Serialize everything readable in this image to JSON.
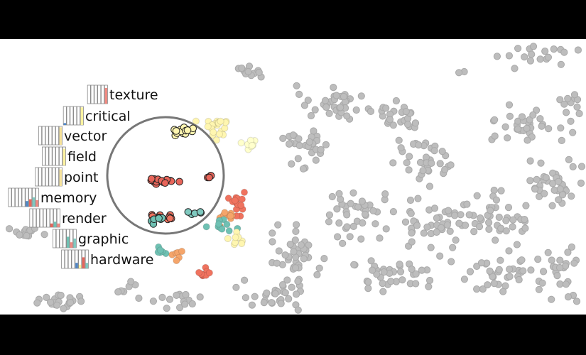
{
  "chart_data": {
    "type": "scatter",
    "title": "",
    "background_color": "#ffffff",
    "frame_color": "#000000",
    "base_point_color": "#bdbdbd",
    "lens": {
      "shape": "circle",
      "border_color": "#777777"
    },
    "categories": [
      {
        "name": "texture",
        "color": "#fff6b0"
      },
      {
        "name": "critical",
        "color": "#fde29b"
      },
      {
        "name": "vector",
        "color": "#f9d58c"
      },
      {
        "name": "field",
        "color": "#ffffcc"
      },
      {
        "name": "point",
        "color": "#e8655a"
      },
      {
        "name": "memory",
        "color": "#f0735f"
      },
      {
        "name": "render",
        "color": "#7fc9bf"
      },
      {
        "name": "graphic",
        "color": "#6fc1b3"
      },
      {
        "name": "hardware",
        "color": "#f5a56a"
      }
    ],
    "keywords": [
      {
        "label": "texture",
        "bars": [
          0.0,
          0.0,
          0.0,
          0.0,
          0.0,
          0.85
        ],
        "bar_colors": [
          "#dddddd",
          "#dddddd",
          "#dddddd",
          "#dddddd",
          "#dddddd",
          "#f08a82"
        ]
      },
      {
        "label": "critical",
        "bars": [
          0.1,
          0.0,
          0.0,
          0.0,
          0.0,
          0.95
        ],
        "bar_colors": [
          "#4f86c6",
          "#dddddd",
          "#dddddd",
          "#dddddd",
          "#dddddd",
          "#fff3a0"
        ]
      },
      {
        "label": "vector",
        "bars": [
          0.0,
          0.0,
          0.0,
          0.0,
          0.0,
          0.0,
          0.95
        ],
        "bar_colors": [
          "#dddddd",
          "#dddddd",
          "#dddddd",
          "#dddddd",
          "#dddddd",
          "#dddddd",
          "#f5e19a"
        ]
      },
      {
        "label": "field",
        "bars": [
          0.0,
          0.0,
          0.0,
          0.0,
          0.0,
          0.0,
          0.9
        ],
        "bar_colors": [
          "#dddddd",
          "#dddddd",
          "#dddddd",
          "#dddddd",
          "#dddddd",
          "#dddddd",
          "#fff3a0"
        ]
      },
      {
        "label": "point",
        "bars": [
          0.0,
          0.0,
          0.0,
          0.0,
          0.0,
          0.0,
          0.0,
          0.9
        ],
        "bar_colors": [
          "#dddddd",
          "#dddddd",
          "#dddddd",
          "#dddddd",
          "#dddddd",
          "#dddddd",
          "#dddddd",
          "#f6e39e"
        ]
      },
      {
        "label": "memory",
        "bars": [
          0.0,
          0.0,
          0.0,
          0.0,
          0.0,
          0.3,
          0.4,
          0.5,
          0.35
        ],
        "bar_colors": [
          "#dddddd",
          "#dddddd",
          "#dddddd",
          "#dddddd",
          "#dddddd",
          "#4f86c6",
          "#e8655a",
          "#7fc9bf",
          "#f08a82"
        ]
      },
      {
        "label": "render",
        "bars": [
          0.0,
          0.0,
          0.0,
          0.0,
          0.0,
          0.0,
          0.2,
          0.3,
          0.2
        ],
        "bar_colors": [
          "#dddddd",
          "#dddddd",
          "#dddddd",
          "#dddddd",
          "#dddddd",
          "#dddddd",
          "#e8655a",
          "#6fc1b3",
          "#f08a82"
        ]
      },
      {
        "label": "graphic",
        "bars": [
          0.0,
          0.0,
          0.0,
          0.0,
          0.6,
          0.3,
          0.5
        ],
        "bar_colors": [
          "#dddddd",
          "#dddddd",
          "#dddddd",
          "#dddddd",
          "#6fc1b3",
          "#f08a82",
          "#7fc9bf"
        ]
      },
      {
        "label": "hardware",
        "bars": [
          0.0,
          0.0,
          0.0,
          0.0,
          0.3,
          0.2,
          0.6,
          0.3
        ],
        "bar_colors": [
          "#dddddd",
          "#dddddd",
          "#dddddd",
          "#dddddd",
          "#4f86c6",
          "#fff3a0",
          "#e8655a",
          "#7fc9bf"
        ]
      }
    ]
  }
}
